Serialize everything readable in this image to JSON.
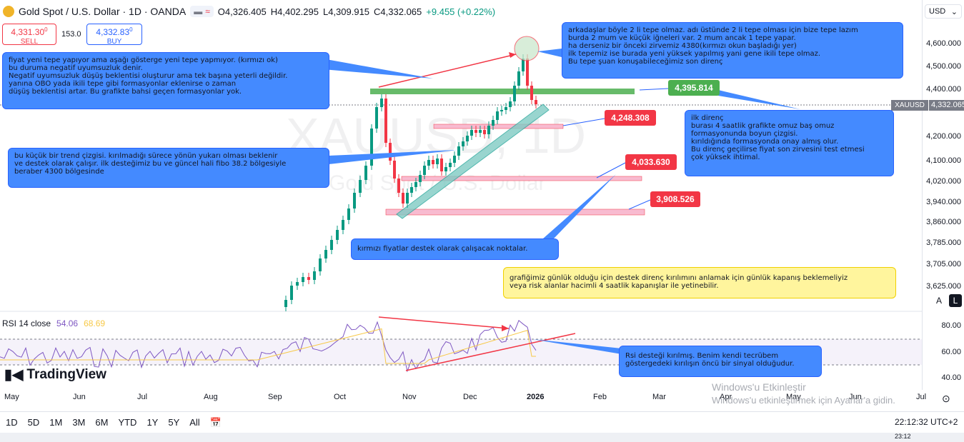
{
  "header": {
    "title": "Gold Spot / U.S. Dollar · 1D · OANDA",
    "open": "O4,326.405",
    "high": "H4,402.295",
    "low": "L4,309.915",
    "close": "C4,332.065",
    "change": "+9.455 (+0.22%)"
  },
  "trade": {
    "sell_price": "4,331.30",
    "sell_sup": "0",
    "sell_label": "SELL",
    "spread": "153.0",
    "buy_price": "4,332.83",
    "buy_sup": "0",
    "buy_label": "BUY"
  },
  "currency_selector": "USD",
  "price_axis": [
    "4,600.000",
    "4,500.000",
    "4,400.000",
    "4,200.000",
    "4,100.000",
    "4,020.000",
    "3,940.000",
    "3,860.000",
    "3,785.000",
    "3,705.000",
    "3,625.000"
  ],
  "current_price": {
    "symbol": "XAUUSD",
    "value": "4,332.065"
  },
  "rsi": {
    "label": "RSI 14 close",
    "value1": "54.06",
    "value2": "68.69",
    "axis": [
      "80.00",
      "60.00",
      "40.00"
    ]
  },
  "time_axis": [
    "May",
    "Jun",
    "Jul",
    "Aug",
    "Sep",
    "Oct",
    "Nov",
    "Dec",
    "2026",
    "Feb",
    "Mar",
    "Apr",
    "May",
    "Jun",
    "Jul"
  ],
  "watermark": {
    "big": "XAUUSD, 1D",
    "small": "Gold Spot / U.S. Dollar"
  },
  "notes": {
    "top_left": "fiyat yeni tepe yapıyor ama aşağı gösterge yeni tepe yapmıyor. (kırmızı ok)\nbu duruma negatif uyumsuzluk denir.\nNegatif uyumsuzluk düşüş beklentisi oluşturur ama tek başına yeterli değildir.\nyanına OBO yada ikili tepe gibi formasyonlar eklenirse o zaman\ndüşüş beklentisi artar.  Bu grafikte bahsi geçen formasyonlar yok.",
    "top_right": "arkadaşlar böyle 2 li tepe olmaz. adı üstünde 2 li tepe olması için bize tepe lazım\n burda 2 mum ve küçük iğneleri var. 2 mum ancak 1 tepe yapar.\nha derseniz bir önceki zirvemiz 4380(kırmızı okun başladığı yer)\nilk tepemiz ise burada yeni yüksek yapılmış yani gene ikili tepe olmaz.\nBu tepe şuan konuşabileceğimiz son direnç",
    "trend": "bu küçük bir trend çizgisi. kırılmadığı sürece yönün yukarı olması beklenir\nve destek olarak çalışır. ilk desteğimiz bu ve güncel hali fibo 38.2 bölgesiyle\nberaber 4300 bölgesinde",
    "resistance": "ilk direnç\nburası 4 saatlik grafikte omuz baş omuz\nformasyonunda boyun çizgisi.\nkırıldığında formasyonda onay almış olur.\nBu direnç geçilirse fiyat son zirvesini test etmesi\nçok yüksek ihtimal.",
    "support": "kırmızı fiyatlar destek olarak çalışacak noktalar.",
    "daily": "grafiğimiz günlük olduğu için destek direnç kırılımını anlamak için günlük kapanış beklemeliyiz\nveya risk alanlar hacimli 4 saatlik kapanışlar ile yetinebilir.",
    "rsi": "Rsi desteği kırılmış. Benim kendi tecrübem\ngöstergedeki kırılışın öncü bir sinyal olduğudur."
  },
  "price_tags": {
    "green": "4,395.814",
    "red1": "4,248.308",
    "red2": "4,033.630",
    "red3": "3,908.526"
  },
  "logo": "TradingView",
  "bottom_bar": {
    "ranges": [
      "1D",
      "5D",
      "1M",
      "3M",
      "6M",
      "YTD",
      "1Y",
      "5Y",
      "All"
    ],
    "clock": "22:12:32 UTC+2"
  },
  "axis_buttons": {
    "auto": "A",
    "log": "L"
  },
  "windows_watermark": {
    "line1": "Windows'u Etkinleştir",
    "line2": "Windows'u etkinleştirmek için Ayarlar'a gidin."
  },
  "taskbar_time": "23:12",
  "colors": {
    "up": "#089981",
    "down": "#f23645",
    "note_blue": "#448aff",
    "note_yellow": "#fff59d",
    "rsi_line": "#7e57c2",
    "rsi_ma": "#f7c948"
  }
}
